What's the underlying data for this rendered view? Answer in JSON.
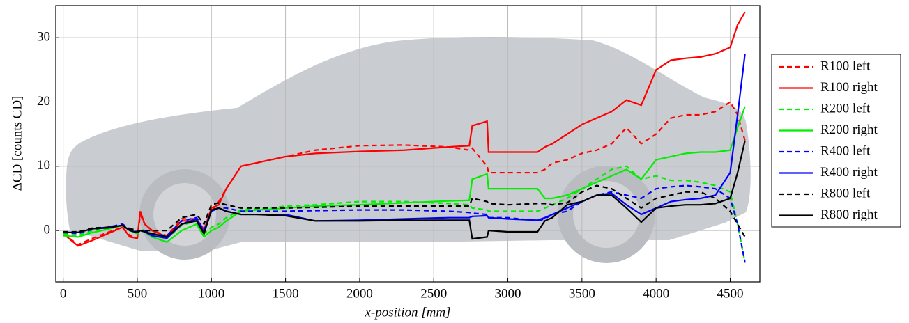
{
  "chart_data": {
    "type": "line",
    "xlabel": "x-position [mm]",
    "ylabel": "ΔCD [counts CD]",
    "x": [
      0,
      100,
      200,
      300,
      400,
      450,
      500,
      520,
      550,
      600,
      700,
      800,
      900,
      950,
      1000,
      1050,
      1100,
      1200,
      1300,
      1400,
      1500,
      1700,
      2000,
      2300,
      2600,
      2740,
      2760,
      2860,
      2870,
      3000,
      3200,
      3250,
      3300,
      3400,
      3500,
      3600,
      3700,
      3800,
      3900,
      4000,
      4100,
      4200,
      4300,
      4400,
      4500,
      4550,
      4600
    ],
    "series": [
      {
        "name": "R100 left",
        "color": "#ff0000",
        "line_style": "dashed",
        "values": [
          -0.5,
          -2.2,
          -1.2,
          -0.3,
          0.5,
          -0.8,
          -1.2,
          2.5,
          1,
          0,
          -0.8,
          1.8,
          1.8,
          0.2,
          3,
          4.5,
          6.5,
          10,
          10.5,
          11,
          11.5,
          12.5,
          13.2,
          13.3,
          13,
          12.5,
          12.8,
          10,
          9,
          9,
          9,
          9.5,
          10.5,
          11,
          12,
          12.5,
          13.5,
          16,
          13.5,
          15,
          17.5,
          18,
          18,
          18.5,
          20,
          18,
          14
        ]
      },
      {
        "name": "R100 right",
        "color": "#ff0000",
        "line_style": "solid",
        "values": [
          -0.5,
          -2.4,
          -1.5,
          -0.5,
          0.5,
          -1,
          -1.2,
          3,
          1,
          0,
          -1,
          1.5,
          1.5,
          0,
          3.5,
          4,
          6.5,
          10,
          10.5,
          11,
          11.5,
          12,
          12.3,
          12.5,
          13,
          13.2,
          16.3,
          17,
          12.2,
          12.2,
          12.2,
          13,
          13.5,
          15,
          16.5,
          17.5,
          18.5,
          20.3,
          19.5,
          25,
          26.5,
          26.8,
          27,
          27.5,
          28.5,
          32,
          34
        ]
      },
      {
        "name": "R200 left",
        "color": "#00ee00",
        "line_style": "dashed",
        "values": [
          -0.5,
          -0.8,
          0,
          0.3,
          0.8,
          0,
          -0.3,
          0.2,
          0,
          -0.5,
          -1.2,
          0.8,
          1.5,
          -0.5,
          0.5,
          1,
          2,
          3.2,
          3.4,
          3.5,
          3.8,
          4,
          4.5,
          4.5,
          4.2,
          4,
          3.5,
          3.2,
          3,
          3,
          3,
          3.5,
          4,
          5,
          6.5,
          8,
          9.5,
          10,
          8,
          8.5,
          7.8,
          7.8,
          7.5,
          7,
          6,
          1,
          -5
        ]
      },
      {
        "name": "R200 right",
        "color": "#00ee00",
        "line_style": "solid",
        "values": [
          -0.8,
          -1,
          -0.3,
          0.2,
          0.8,
          0,
          -0.5,
          0,
          -0.2,
          -1,
          -1.8,
          0,
          1,
          -1,
          0,
          0.5,
          1.5,
          3,
          3.2,
          3.3,
          3.5,
          3.8,
          4,
          4.3,
          4.6,
          4.7,
          8,
          8.8,
          6.5,
          6.5,
          6.5,
          5,
          5,
          5.5,
          6.5,
          7.5,
          8.5,
          9.5,
          8,
          11,
          11.5,
          12,
          12.2,
          12.2,
          12.5,
          16,
          19.3
        ]
      },
      {
        "name": "R400 left",
        "color": "#0000ff",
        "line_style": "dashed",
        "values": [
          -0.3,
          -0.5,
          0.2,
          0.5,
          1,
          0.2,
          -0.2,
          0,
          0,
          -0.5,
          -0.8,
          1.5,
          2,
          0,
          3,
          3.5,
          3.5,
          3,
          3,
          3,
          3,
          3.1,
          3.2,
          3.2,
          3,
          2.8,
          2.7,
          2.5,
          2,
          2,
          1.5,
          1.8,
          2.5,
          3,
          4.5,
          5.5,
          6,
          5.5,
          5,
          6.5,
          6.8,
          7,
          6.8,
          6.5,
          5,
          1,
          -5
        ]
      },
      {
        "name": "R400 right",
        "color": "#0000ff",
        "line_style": "solid",
        "values": [
          -0.3,
          -0.3,
          0.3,
          0.5,
          0.8,
          0,
          -0.3,
          0,
          -0.2,
          -0.8,
          -1.2,
          1,
          1.8,
          -0.3,
          3,
          3.5,
          3,
          2.5,
          2.5,
          2.5,
          2.5,
          1.5,
          1.6,
          1.8,
          2,
          2,
          2.2,
          2.3,
          2,
          1.8,
          1.6,
          2,
          2.5,
          3.5,
          4.5,
          5.5,
          5.8,
          4,
          2.5,
          3.5,
          4.5,
          4.8,
          5,
          5.5,
          9,
          18,
          27.5
        ]
      },
      {
        "name": "R800 left",
        "color": "#000000",
        "line_style": "dashed",
        "values": [
          -0.2,
          -0.2,
          0.4,
          0.5,
          0.8,
          0.3,
          0,
          0,
          0,
          0,
          0,
          2,
          2.5,
          1,
          4,
          4.3,
          4,
          3.5,
          3.5,
          3.5,
          3.5,
          3.6,
          3.8,
          3.8,
          3.8,
          3.8,
          5,
          4.5,
          4.2,
          4,
          4.2,
          4.2,
          4,
          4.3,
          6,
          7,
          6.5,
          5,
          3.5,
          5,
          5.5,
          6,
          6,
          5,
          3,
          1,
          -1
        ]
      },
      {
        "name": "R800 right",
        "color": "#000000",
        "line_style": "solid",
        "values": [
          -0.3,
          -0.3,
          0.3,
          0.4,
          0.8,
          0,
          -0.3,
          0,
          -0.2,
          -0.5,
          -1,
          1,
          1.5,
          -0.5,
          3.2,
          3.5,
          3,
          2.5,
          2.5,
          2.4,
          2.3,
          1.5,
          1.5,
          1.6,
          1.6,
          1.6,
          -1.3,
          -1,
          0,
          -0.2,
          -0.2,
          1.5,
          2,
          4,
          4.5,
          5.5,
          5.5,
          3.5,
          1.3,
          3.5,
          3.8,
          4,
          4,
          4.2,
          5,
          9,
          14
        ]
      }
    ],
    "xlim": [
      -50,
      4700
    ],
    "ylim": [
      -8,
      35
    ],
    "xticks": [
      0,
      500,
      1000,
      1500,
      2000,
      2500,
      3000,
      3500,
      4000,
      4500
    ],
    "yticks": [
      0,
      10,
      20,
      30
    ],
    "grid": true,
    "legend": "right"
  }
}
